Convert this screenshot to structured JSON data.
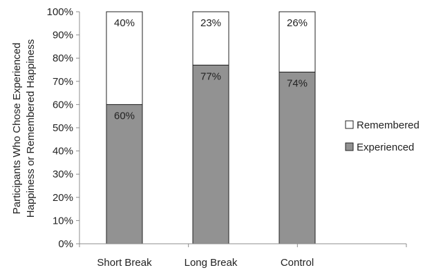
{
  "chart_data": {
    "type": "bar",
    "stacked": true,
    "categories": [
      "Short Break",
      "Long Break",
      "Control"
    ],
    "series": [
      {
        "name": "Experienced",
        "values": [
          60,
          77,
          74
        ],
        "labels": [
          "60%",
          "77%",
          "74%"
        ],
        "color": "#929292"
      },
      {
        "name": "Remembered",
        "values": [
          40,
          23,
          26
        ],
        "labels": [
          "40%",
          "23%",
          "26%"
        ],
        "color": "#ffffff"
      }
    ],
    "title": "",
    "xlabel": "",
    "ylabel": [
      "Participants Who Chose Experienced",
      "Happiness or Remembered Happiness"
    ],
    "ylim": [
      0,
      100
    ],
    "yticks": [
      0,
      10,
      20,
      30,
      40,
      50,
      60,
      70,
      80,
      90,
      100
    ],
    "ytick_labels": [
      "0%",
      "10%",
      "20%",
      "30%",
      "40%",
      "50%",
      "60%",
      "70%",
      "80%",
      "90%",
      "100%"
    ],
    "grid": false,
    "legend": {
      "position": "right",
      "entries": [
        "Remembered",
        "Experienced"
      ]
    }
  }
}
